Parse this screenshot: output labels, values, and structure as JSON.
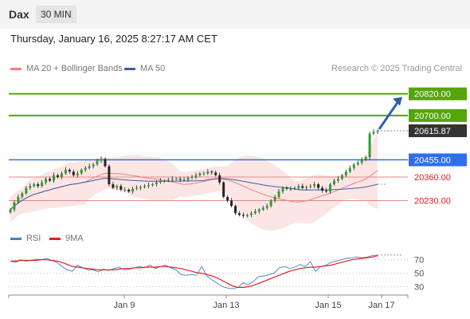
{
  "header": {
    "symbol": "Dax",
    "timeframe": "30 MIN",
    "datetime": "Thursday, January 16, 2025 8:27:17 AM CET",
    "credit": "Research © 2025 Trading Central"
  },
  "legend": {
    "ma20_label": "MA 20 + Bollinger Bands",
    "ma20_color": "#f08080",
    "ma50_label": "MA 50",
    "ma50_color": "#3a5fa0"
  },
  "rsi_legend": {
    "rsi_label": "RSI",
    "rsi_color": "#4a7bd0",
    "ma9_label": "9MA",
    "ma9_color": "#e02020"
  },
  "chart_data": [
    {
      "type": "line",
      "panel": "price",
      "ylim": [
        20060,
        20920
      ],
      "x_tick_labels": [
        "Jan 9",
        "Jan 13",
        "Jan 15",
        "Jan 17"
      ],
      "levels": [
        {
          "value": 20820.0,
          "label": "20820.00",
          "kind": "resistance",
          "color": "#56a40c"
        },
        {
          "value": 20700.0,
          "label": "20700.00",
          "kind": "resistance",
          "color": "#56a40c"
        },
        {
          "value": 20615.87,
          "label": "20615.87",
          "kind": "last",
          "color": "#333333"
        },
        {
          "value": 20455.0,
          "label": "20455.00",
          "kind": "pivot",
          "color": "#2f6fe8"
        },
        {
          "value": 20360.0,
          "label": "20360.00",
          "kind": "support",
          "color": "#e02020"
        },
        {
          "value": 20230.0,
          "label": "20230.00",
          "kind": "support",
          "color": "#e02020"
        }
      ],
      "close": [
        20180,
        20220,
        20250,
        20270,
        20300,
        20310,
        20320,
        20310,
        20330,
        20350,
        20340,
        20370,
        20360,
        20380,
        20400,
        20390,
        20370,
        20380,
        20400,
        20410,
        20420,
        20430,
        20450,
        20460,
        20420,
        20320,
        20300,
        20310,
        20290,
        20290,
        20280,
        20295,
        20300,
        20305,
        20310,
        20315,
        20320,
        20330,
        20340,
        20340,
        20345,
        20350,
        20350,
        20345,
        20345,
        20355,
        20360,
        20370,
        20380,
        20380,
        20390,
        20385,
        20370,
        20330,
        20250,
        20230,
        20200,
        20160,
        20150,
        20145,
        20150,
        20160,
        20170,
        20180,
        20190,
        20200,
        20230,
        20250,
        20280,
        20300,
        20295,
        20295,
        20300,
        20310,
        20300,
        20305,
        20310,
        20320,
        20300,
        20285,
        20280,
        20320,
        20340,
        20350,
        20370,
        20390,
        20410,
        20430,
        20440,
        20455,
        20470,
        20600,
        20610,
        20615
      ]
    },
    {
      "type": "line",
      "panel": "rsi",
      "ylim": [
        20,
        85
      ],
      "y_ticks": [
        30,
        50,
        70
      ],
      "series": [
        {
          "name": "RSI",
          "values": [
            68,
            66,
            70,
            68,
            69,
            71,
            70,
            72,
            69,
            66,
            60,
            55,
            53,
            62,
            58,
            55,
            55,
            52,
            56,
            54,
            57,
            59,
            55,
            56,
            58,
            60,
            58,
            62,
            57,
            60,
            62,
            58,
            55,
            48,
            47,
            48,
            47,
            60,
            46,
            40,
            35,
            30,
            28,
            27,
            29,
            36,
            33,
            38,
            45,
            46,
            48,
            50,
            58,
            60,
            57,
            59,
            63,
            60,
            67,
            53,
            60,
            62,
            66,
            68,
            70,
            72,
            73,
            74,
            73,
            74,
            76,
            77
          ]
        },
        {
          "name": "9MA",
          "values": [
            68,
            68,
            69,
            69,
            69,
            69,
            70,
            70,
            69,
            68,
            66,
            63,
            60,
            59,
            58,
            57,
            56,
            55,
            55,
            55,
            55,
            56,
            57,
            57,
            58,
            58,
            59,
            59,
            59,
            60,
            60,
            59,
            58,
            57,
            55,
            53,
            51,
            50,
            48,
            46,
            43,
            39,
            35,
            31,
            29,
            29,
            30,
            32,
            35,
            38,
            41,
            44,
            47,
            50,
            53,
            55,
            57,
            58,
            59,
            59,
            60,
            61,
            62,
            64,
            66,
            68,
            70,
            71,
            72,
            73,
            74,
            76
          ]
        }
      ]
    }
  ]
}
